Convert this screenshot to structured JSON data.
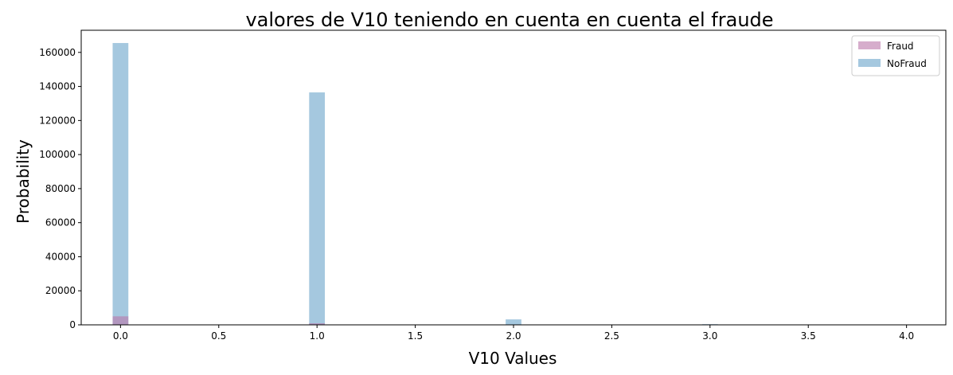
{
  "chart_data": {
    "type": "bar",
    "title": "valores de V10 teniendo en cuenta en cuenta el fraude",
    "xlabel": "V10 Values",
    "ylabel": "Probability",
    "xlim": [
      -0.2,
      4.2
    ],
    "ylim": [
      0,
      173000
    ],
    "xticks": [
      0.0,
      0.5,
      1.0,
      1.5,
      2.0,
      2.5,
      3.0,
      3.5,
      4.0
    ],
    "xtick_labels": [
      "0.0",
      "0.5",
      "1.0",
      "1.5",
      "2.0",
      "2.5",
      "3.0",
      "3.5",
      "4.0"
    ],
    "yticks": [
      0,
      20000,
      40000,
      60000,
      80000,
      100000,
      120000,
      140000,
      160000
    ],
    "ytick_labels": [
      "0",
      "20000",
      "40000",
      "60000",
      "80000",
      "100000",
      "120000",
      "140000",
      "160000"
    ],
    "bin_width": 0.08,
    "grid": false,
    "legend_position": "top-right",
    "series": [
      {
        "name": "Fraud",
        "color": "#b7a",
        "opacity": 0.6,
        "x": [
          0.0,
          1.0,
          2.0,
          3.0,
          4.0
        ],
        "values": [
          5000,
          900,
          150,
          40,
          20
        ]
      },
      {
        "name": "NoFraud",
        "color": "#7fb0d2",
        "opacity": 0.7,
        "x": [
          0.0,
          1.0,
          2.0,
          3.0,
          4.0
        ],
        "values": [
          165500,
          136500,
          3200,
          400,
          100
        ]
      }
    ]
  }
}
